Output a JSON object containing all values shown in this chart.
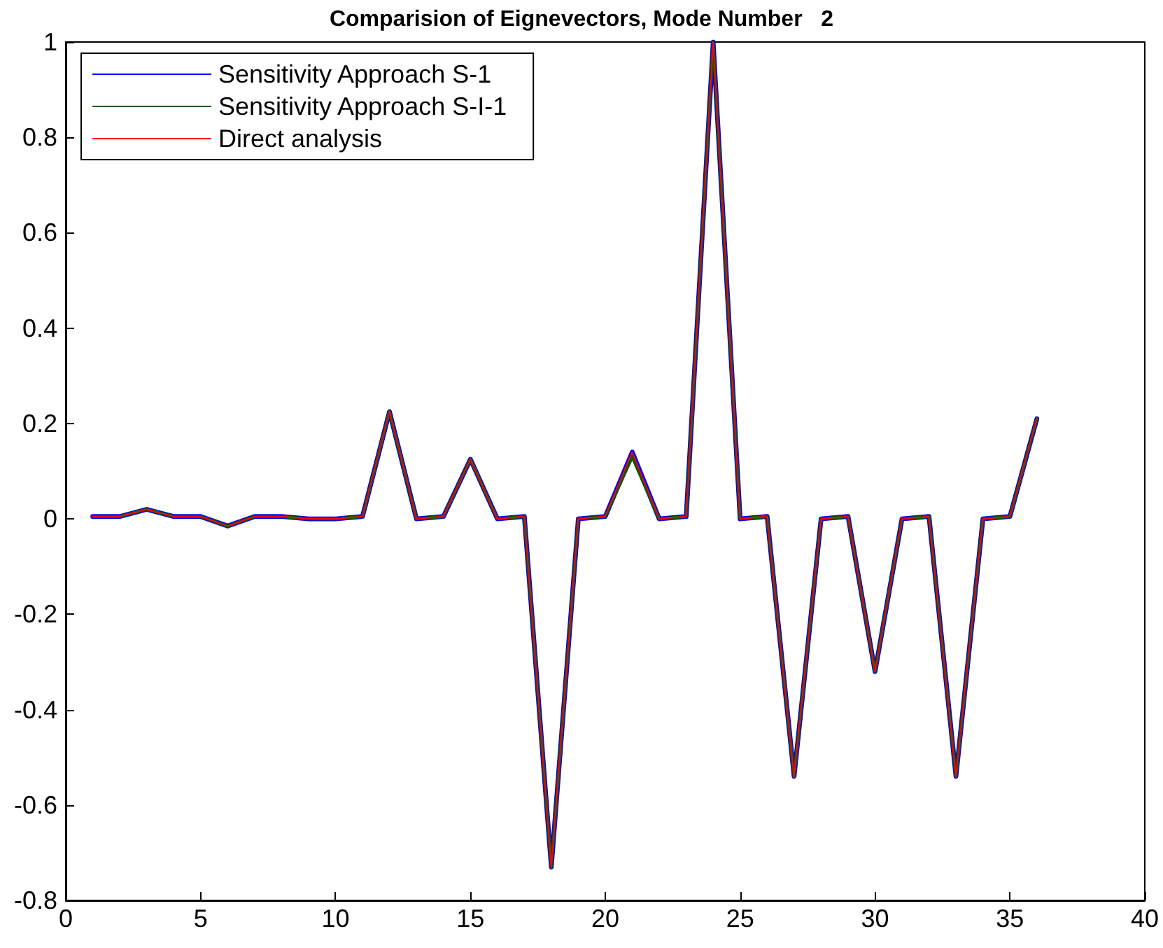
{
  "chart_data": {
    "type": "line",
    "title": "Comparision of Eignevectors, Mode Number   2",
    "x": [
      1,
      2,
      3,
      4,
      5,
      6,
      7,
      8,
      9,
      10,
      11,
      12,
      13,
      14,
      15,
      16,
      17,
      18,
      19,
      20,
      21,
      22,
      23,
      24,
      25,
      26,
      27,
      28,
      29,
      30,
      31,
      32,
      33,
      34,
      35,
      36
    ],
    "series": [
      {
        "name": "Sensitivity Approach S-1",
        "color": "#0000ff",
        "values": [
          0.005,
          0.005,
          0.02,
          0.005,
          0.005,
          -0.015,
          0.005,
          0.005,
          0,
          0,
          0.005,
          0.225,
          0,
          0.005,
          0.125,
          0,
          0.005,
          -0.73,
          0,
          0.005,
          0.14,
          0,
          0.005,
          1.0,
          0,
          0.005,
          -0.54,
          0,
          0.005,
          -0.32,
          0,
          0.005,
          -0.54,
          0,
          0.005,
          0.21
        ]
      },
      {
        "name": "Sensitivity Approach S-I-1",
        "color": "#005a00",
        "values": [
          0.005,
          0.005,
          0.02,
          0.005,
          0.005,
          -0.015,
          0.005,
          0.005,
          0,
          0,
          0.005,
          0.225,
          0,
          0.005,
          0.125,
          0,
          0.005,
          -0.73,
          0,
          0.005,
          0.13,
          0,
          0.005,
          1.0,
          0,
          0.005,
          -0.54,
          0,
          0.005,
          -0.32,
          0,
          0.005,
          -0.54,
          0,
          0.005,
          0.21
        ]
      },
      {
        "name": "Direct analysis",
        "color": "#ff0000",
        "values": [
          0.005,
          0.005,
          0.02,
          0.005,
          0.005,
          -0.015,
          0.005,
          0.005,
          0,
          0,
          0.005,
          0.225,
          0,
          0.005,
          0.125,
          0,
          0.005,
          -0.73,
          0,
          0.005,
          0.14,
          0,
          0.005,
          1.0,
          0,
          0.005,
          -0.54,
          0,
          0.005,
          -0.32,
          0,
          0.005,
          -0.54,
          0,
          0.005,
          0.21
        ]
      }
    ],
    "xlim": [
      0,
      40
    ],
    "xticks": [
      0,
      5,
      10,
      15,
      20,
      25,
      30,
      35,
      40
    ],
    "ylim": [
      -0.8,
      1
    ],
    "yticks": [
      -0.8,
      -0.6,
      -0.4,
      -0.2,
      0,
      0.2,
      0.4,
      0.6,
      0.8,
      1
    ],
    "grid": false,
    "legend": "top left",
    "marker": "none",
    "line_style": "solid"
  }
}
